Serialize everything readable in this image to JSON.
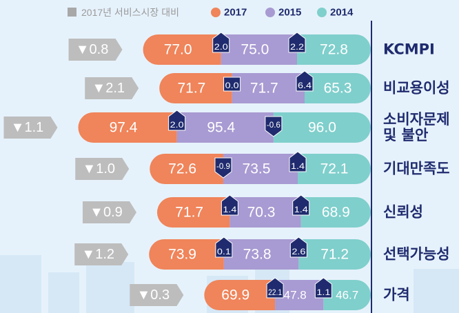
{
  "chart_data": {
    "type": "bar",
    "legend_title": "2017년 서비스시장 대비",
    "categories": [
      "KCMPI",
      "비교용이성",
      "소비자문제\n및 불안",
      "기대만족도",
      "신뢰성",
      "선택가능성",
      "가격"
    ],
    "series": [
      {
        "name": "2017",
        "color": "#f0845a",
        "values": [
          77.0,
          71.7,
          97.4,
          72.6,
          71.7,
          73.9,
          69.9
        ],
        "value_labels": [
          "77.0",
          "71.7",
          "97.4",
          "72.6",
          "71.7",
          "73.9",
          "69.9"
        ]
      },
      {
        "name": "2015",
        "color": "#a89ad2",
        "values": [
          75.0,
          71.7,
          95.4,
          73.5,
          70.3,
          73.8,
          47.8
        ],
        "value_labels": [
          "75.0",
          "71.7",
          "95.4",
          "73.5",
          "70.3",
          "73.8",
          "47.8"
        ]
      },
      {
        "name": "2014",
        "color": "#7fcfcc",
        "values": [
          72.8,
          65.3,
          96.0,
          72.1,
          68.9,
          71.2,
          46.7
        ],
        "value_labels": [
          "72.8",
          "65.3",
          "96.0",
          "72.1",
          "68.9",
          "71.2",
          "46.7"
        ]
      }
    ],
    "changes": [
      -0.8,
      -2.1,
      -1.1,
      -1.0,
      -0.9,
      -1.2,
      -0.3
    ],
    "change_labels": [
      "▼0.8",
      "▼2.1",
      "▼1.1",
      "▼1.0",
      "▼0.9",
      "▼1.2",
      "▼0.3"
    ],
    "diffs_2017_2015": [
      2.0,
      0.0,
      2.0,
      -0.9,
      1.4,
      0.1,
      22.1
    ],
    "diffs_2017_2015_labels": [
      "2.0",
      "0.0",
      "2.0",
      "-0.9",
      "1.4",
      "0.1",
      "22.1"
    ],
    "diffs_2015_2014": [
      2.2,
      6.4,
      -0.6,
      1.4,
      1.4,
      2.6,
      1.1
    ],
    "diffs_2015_2014_labels": [
      "2.2",
      "6.4",
      "-0.6",
      "1.4",
      "1.4",
      "2.6",
      "1.1"
    ]
  }
}
